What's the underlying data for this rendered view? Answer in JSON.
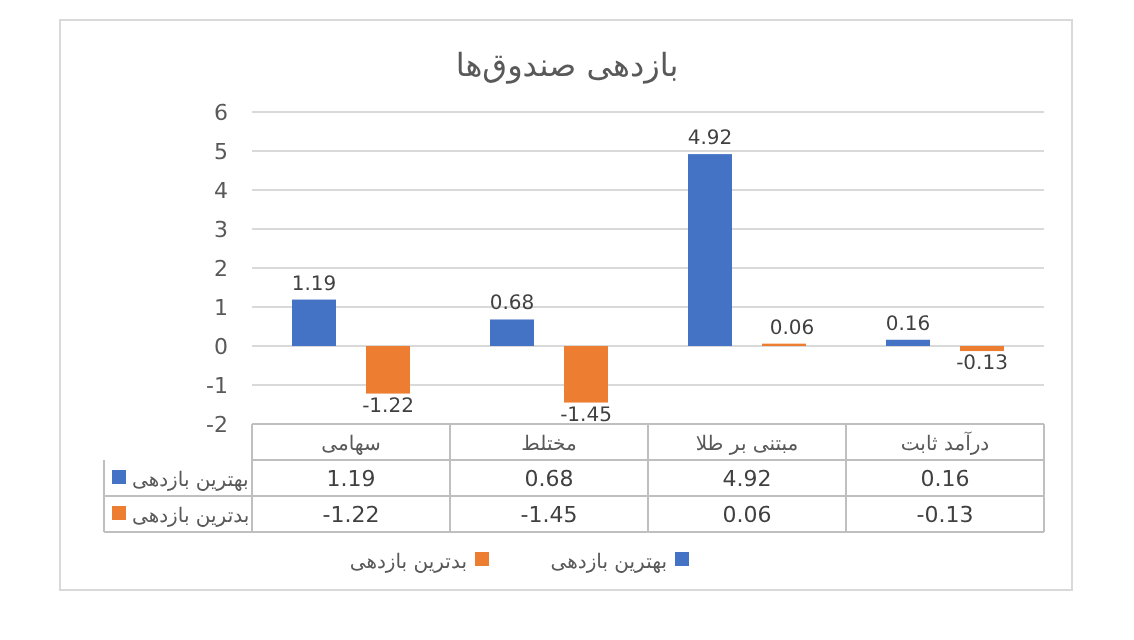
{
  "chart_data": {
    "type": "bar",
    "title": "بازدهی صندوق‌ها",
    "categories": [
      "سهامی",
      "مختلط",
      "مبتنی بر طلا",
      "درآمد ثابت"
    ],
    "series": [
      {
        "name": "بهترین بازدهی",
        "color": "#4472c4",
        "values": [
          1.19,
          0.68,
          4.92,
          0.16
        ],
        "value_labels": [
          "1.19",
          "0.68",
          "4.92",
          "0.16"
        ]
      },
      {
        "name": "بدترین بازدهی",
        "color": "#ed7d31",
        "values": [
          -1.22,
          -1.45,
          0.06,
          -0.13
        ],
        "value_labels": [
          "-1.22",
          "-1.45",
          "0.06",
          "-0.13"
        ]
      }
    ],
    "ylim": [
      -2,
      6
    ],
    "yticks": [
      -2,
      -1,
      0,
      1,
      2,
      3,
      4,
      5,
      6
    ],
    "grid": "y",
    "legend": "bottom",
    "annotations": [
      "1.19",
      "0.68",
      "4.92",
      "0.16",
      "-1.22",
      "-1.45",
      "0.06",
      "-0.13"
    ]
  }
}
